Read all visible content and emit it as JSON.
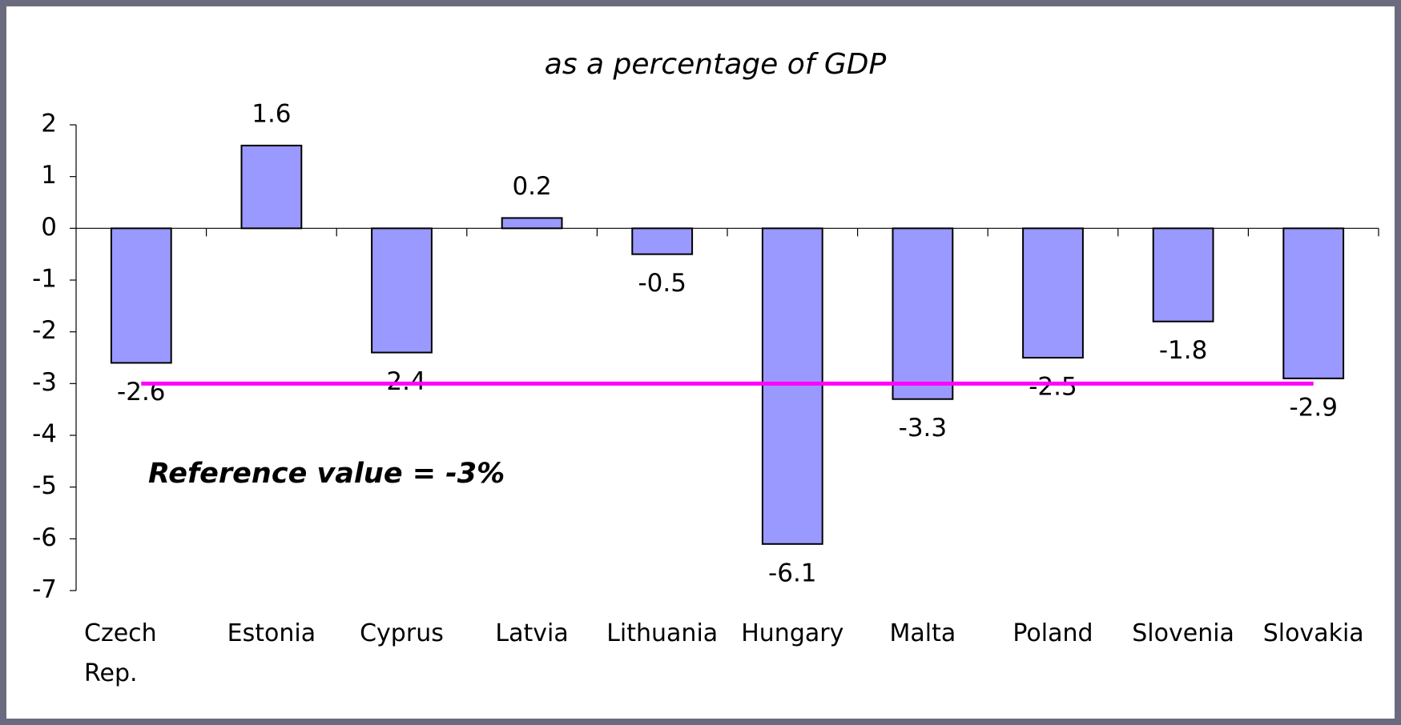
{
  "chart_data": {
    "type": "bar",
    "title": "as a percentage of GDP",
    "categories": [
      "Czech Rep.",
      "Estonia",
      "Cyprus",
      "Latvia",
      "Lithuania",
      "Hungary",
      "Malta",
      "Poland",
      "Slovenia",
      "Slovakia"
    ],
    "values": [
      -2.6,
      1.6,
      -2.4,
      0.2,
      -0.5,
      -6.1,
      -3.3,
      -2.5,
      -1.8,
      -2.9
    ],
    "color": "#9999ff",
    "ylim": [
      -7,
      2
    ],
    "yticks": [
      2,
      1,
      0,
      -1,
      -2,
      -3,
      -4,
      -5,
      -6,
      -7
    ],
    "reference_line": {
      "value": -3,
      "color": "#ff00ff"
    },
    "annotation": "Reference value = -3%"
  }
}
